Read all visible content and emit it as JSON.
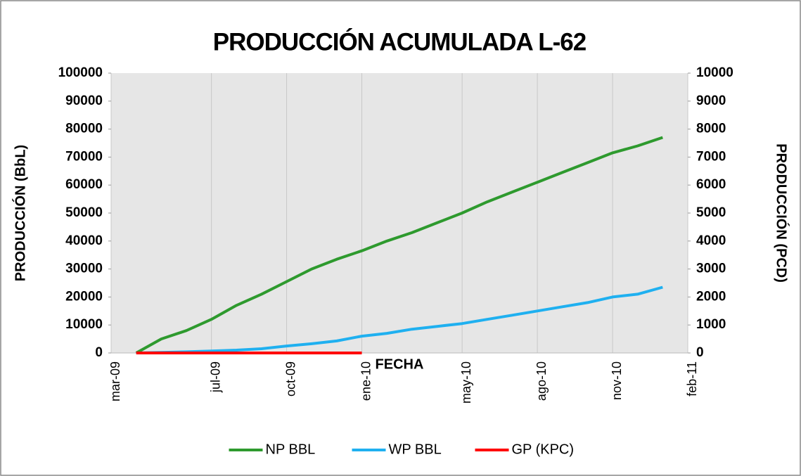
{
  "chart_data": {
    "type": "line",
    "title": "PRODUCCIÓN ACUMULADA L-62",
    "x_label": "FECHA",
    "y_label": "PRODUCCIÓN (BbL)",
    "y2_label": "PRODUCCIÓN (PCD)",
    "x": [
      "2009-04",
      "2009-05",
      "2009-06",
      "2009-07",
      "2009-08",
      "2009-09",
      "2009-10",
      "2009-11",
      "2009-12",
      "2010-01",
      "2010-02",
      "2010-03",
      "2010-04",
      "2010-05",
      "2010-06",
      "2010-07",
      "2010-08",
      "2010-09",
      "2010-10",
      "2010-11",
      "2010-12",
      "2011-01"
    ],
    "series": [
      {
        "name": "NP BBL",
        "color": "#2e9a2e",
        "values": [
          0,
          5000,
          8000,
          12000,
          17000,
          21000,
          25500,
          30000,
          33500,
          36500,
          40000,
          43000,
          46500,
          50000,
          54000,
          57500,
          61000,
          64500,
          68000,
          71500,
          74000,
          77000
        ]
      },
      {
        "name": "WP BBL",
        "color": "#1fb0f0",
        "values": [
          0,
          200,
          400,
          700,
          1000,
          1500,
          2500,
          3300,
          4300,
          6000,
          7000,
          8500,
          9500,
          10500,
          12000,
          13500,
          15000,
          16500,
          18000,
          20000,
          21000,
          23500
        ]
      },
      {
        "name": "GP (KPC)",
        "color": "#ff0000",
        "axis": "y2",
        "values": [
          0,
          0,
          0,
          0,
          0,
          0,
          0,
          0,
          0,
          0,
          null,
          null,
          null,
          null,
          null,
          null,
          null,
          null,
          null,
          null,
          null,
          null
        ]
      }
    ],
    "xlim": [
      "2009-03",
      "2011-02"
    ],
    "xticks": [
      {
        "value": "2009-03",
        "label": "mar-09"
      },
      {
        "value": "2009-07",
        "label": "jul-09"
      },
      {
        "value": "2009-10",
        "label": "oct-09"
      },
      {
        "value": "2010-01",
        "label": "ene-10"
      },
      {
        "value": "2010-05",
        "label": "may-10"
      },
      {
        "value": "2010-08",
        "label": "ago-10"
      },
      {
        "value": "2010-11",
        "label": "nov-10"
      },
      {
        "value": "2011-02",
        "label": "feb-11"
      }
    ],
    "ylim": [
      0,
      100000
    ],
    "yticks": [
      0,
      10000,
      20000,
      30000,
      40000,
      50000,
      60000,
      70000,
      80000,
      90000,
      100000
    ],
    "y2lim": [
      0,
      10000
    ],
    "y2ticks": [
      0,
      1000,
      2000,
      3000,
      4000,
      5000,
      6000,
      7000,
      8000,
      9000,
      10000
    ],
    "grid": "x",
    "legend": "bottom"
  }
}
